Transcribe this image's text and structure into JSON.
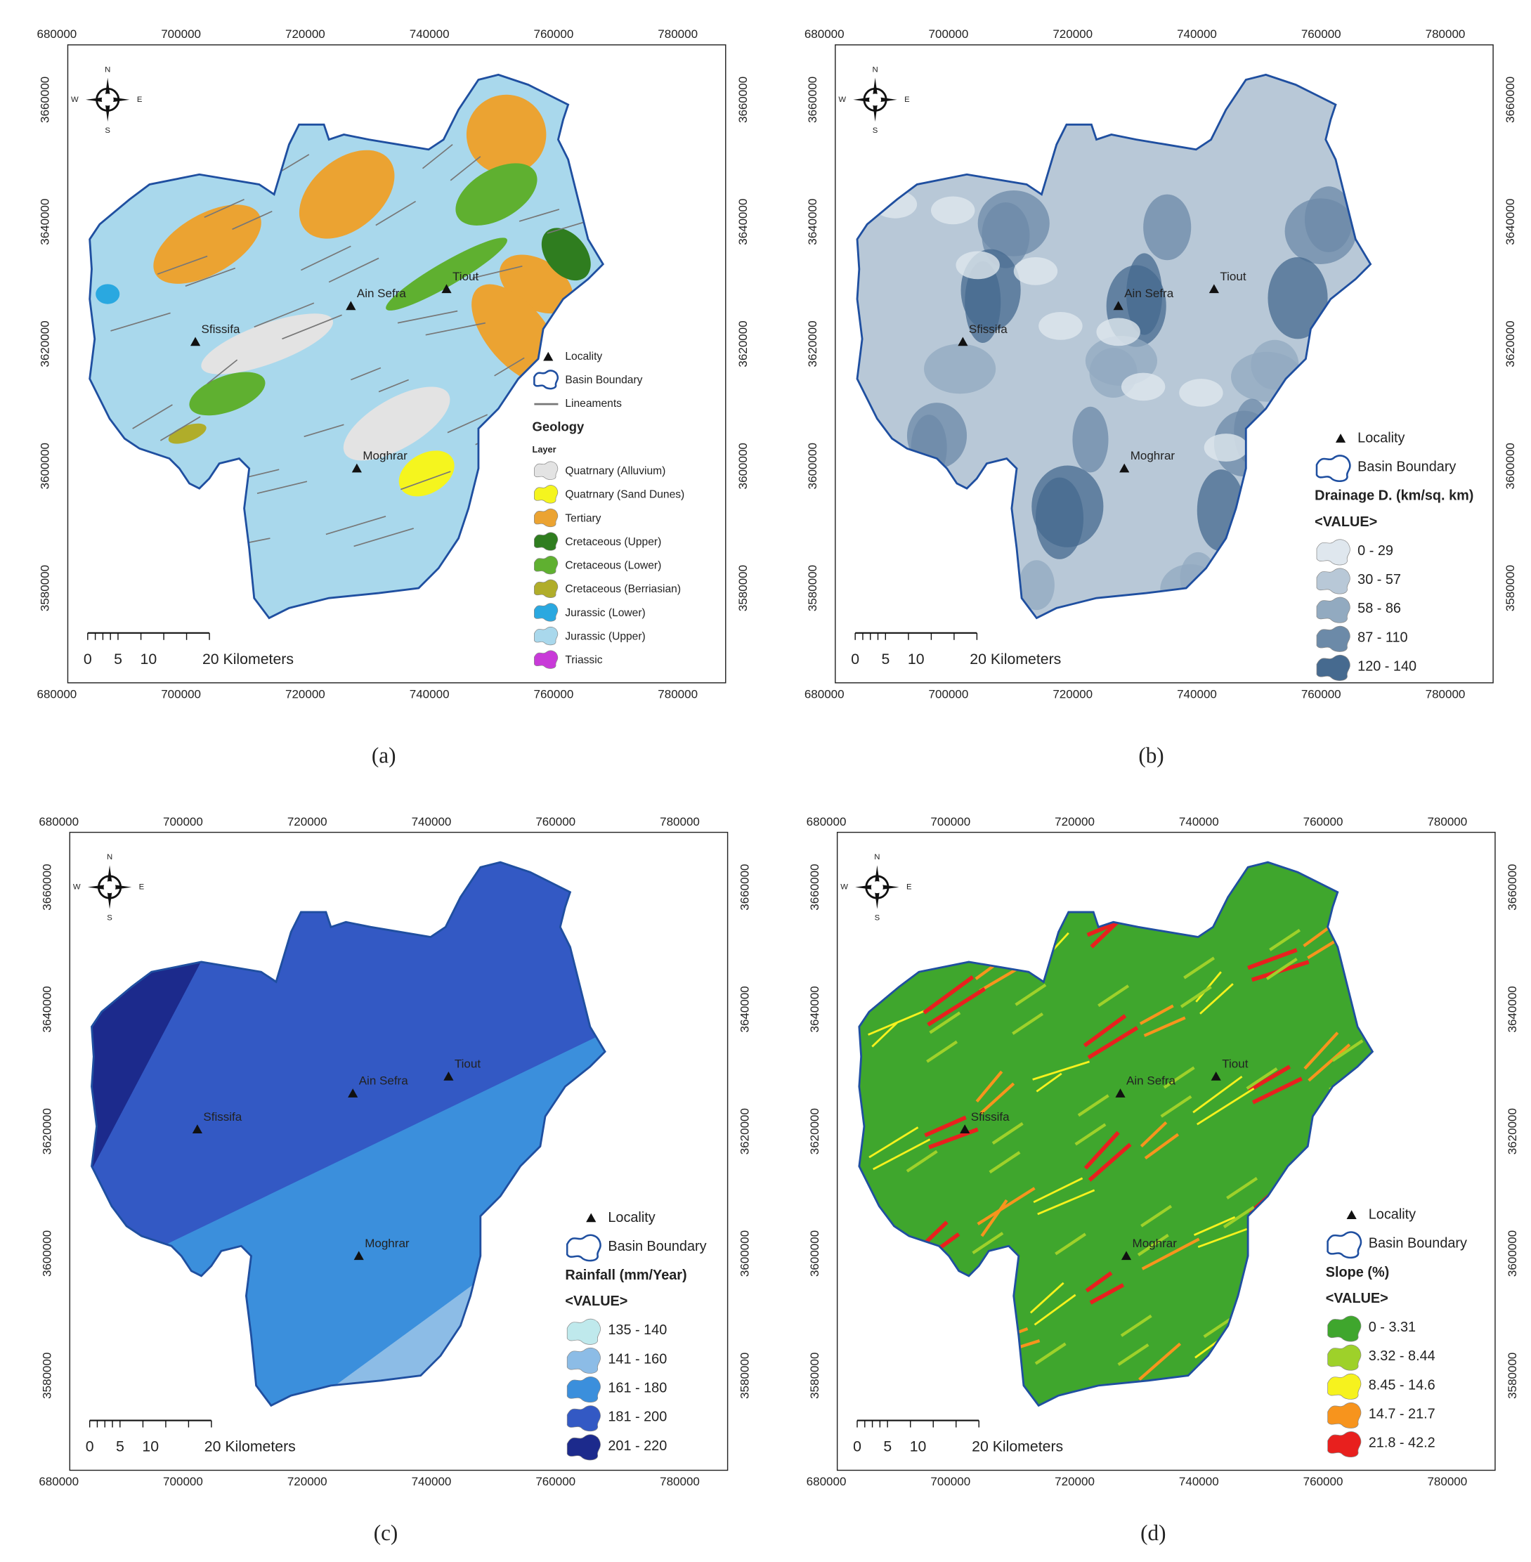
{
  "panels": [
    {
      "label": "(a)",
      "x_ticks": [
        680000,
        700000,
        720000,
        740000,
        760000,
        780000
      ],
      "y_ticks": [
        3580000,
        3600000,
        3620000,
        3640000,
        3660000
      ],
      "compass": {
        "n": "N",
        "s": "S",
        "e": "E",
        "w": "W"
      },
      "localities": [
        "Sfissifa",
        "Ain Sefra",
        "Tiout",
        "Moghrar"
      ],
      "scale_labels": [
        "0",
        "5",
        "10",
        "20 Kilometers"
      ],
      "legend": {
        "locality": "Locality",
        "boundary": "Basin Boundary",
        "lineaments": "Lineaments",
        "title": "Geology",
        "subtitle": "Layer",
        "items": [
          {
            "label": "Quatrnary (Alluvium)",
            "color": "#e3e3e3"
          },
          {
            "label": "Quatrnary (Sand Dunes)",
            "color": "#f5f51e"
          },
          {
            "label": "Tertiary",
            "color": "#eba332"
          },
          {
            "label": "Cretaceous (Upper)",
            "color": "#2f7d1f"
          },
          {
            "label": "Cretaceous (Lower)",
            "color": "#5fb030"
          },
          {
            "label": "Cretaceous (Berriasian)",
            "color": "#b0ad2a"
          },
          {
            "label": "Jurassic (Lower)",
            "color": "#2aa8e0"
          },
          {
            "label": "Jurassic (Upper)",
            "color": "#a9d8ec"
          },
          {
            "label": "Triassic",
            "color": "#c83ad8"
          }
        ]
      }
    },
    {
      "label": "(b)",
      "x_ticks": [
        680000,
        700000,
        720000,
        740000,
        760000,
        780000
      ],
      "y_ticks": [
        3580000,
        3600000,
        3620000,
        3640000,
        3660000
      ],
      "compass": {
        "n": "N",
        "s": "S",
        "e": "E",
        "w": "W"
      },
      "localities": [
        "Sfissifa",
        "Ain Sefra",
        "Tiout",
        "Moghrar"
      ],
      "scale_labels": [
        "0",
        "5",
        "10",
        "20 Kilometers"
      ],
      "legend": {
        "locality": "Locality",
        "boundary": "Basin Boundary",
        "title": "Drainage D. (km/sq. km)",
        "subtitle": "<VALUE>",
        "items": [
          {
            "label": "0 - 29",
            "color": "#dfe7ee"
          },
          {
            "label": "30 - 57",
            "color": "#b8c8d7"
          },
          {
            "label": "58 - 86",
            "color": "#92aac0"
          },
          {
            "label": "87 - 110",
            "color": "#6c8aa8"
          },
          {
            "label": "120 - 140",
            "color": "#466a8f"
          }
        ]
      }
    },
    {
      "label": "(c)",
      "x_ticks": [
        680000,
        700000,
        720000,
        740000,
        760000,
        780000
      ],
      "y_ticks": [
        3580000,
        3600000,
        3620000,
        3640000,
        3660000
      ],
      "compass": {
        "n": "N",
        "s": "S",
        "e": "E",
        "w": "W"
      },
      "localities": [
        "Sfissifa",
        "Ain Sefra",
        "Tiout",
        "Moghrar"
      ],
      "scale_labels": [
        "0",
        "5",
        "10",
        "20 Kilometers"
      ],
      "legend": {
        "locality": "Locality",
        "boundary": "Basin Boundary",
        "title": "Rainfall (mm/Year)",
        "subtitle": "<VALUE>",
        "items": [
          {
            "label": "135 - 140",
            "color": "#bfe9ec"
          },
          {
            "label": "141 - 160",
            "color": "#8cbce6"
          },
          {
            "label": "161 - 180",
            "color": "#3b8fdc"
          },
          {
            "label": "181 - 200",
            "color": "#3359c4"
          },
          {
            "label": "201 - 220",
            "color": "#1c2a8c"
          }
        ]
      }
    },
    {
      "label": "(d)",
      "x_ticks": [
        680000,
        700000,
        720000,
        740000,
        760000,
        780000
      ],
      "y_ticks": [
        3580000,
        3600000,
        3620000,
        3640000,
        3660000
      ],
      "compass": {
        "n": "N",
        "s": "S",
        "e": "E",
        "w": "W"
      },
      "localities": [
        "Sfissifa",
        "Ain Sefra",
        "Tiout",
        "Moghrar"
      ],
      "scale_labels": [
        "0",
        "5",
        "10",
        "20 Kilometers"
      ],
      "legend": {
        "locality": "Locality",
        "boundary": "Basin Boundary",
        "title": "Slope (%)",
        "subtitle": "<VALUE>",
        "items": [
          {
            "label": "0 - 3.31",
            "color": "#3fa62d"
          },
          {
            "label": "3.32 - 8.44",
            "color": "#9ed12a"
          },
          {
            "label": "8.45 - 14.6",
            "color": "#f6f21e"
          },
          {
            "label": "14.7 - 21.7",
            "color": "#f7941d"
          },
          {
            "label": "21.8 - 42.2",
            "color": "#e8201e"
          }
        ]
      }
    }
  ]
}
